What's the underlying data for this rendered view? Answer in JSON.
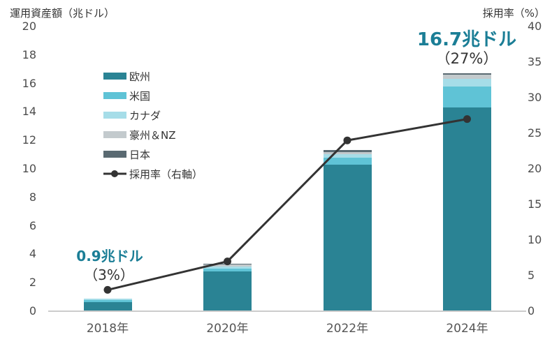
{
  "chart_data": {
    "type": "bar",
    "subtype": "stacked-bar-with-line",
    "categories": [
      "2018年",
      "2020年",
      "2022年",
      "2024年"
    ],
    "series": [
      {
        "name": "欧州",
        "color": "#2a8394",
        "values": [
          0.65,
          2.8,
          10.3,
          14.3
        ]
      },
      {
        "name": "米国",
        "color": "#5fc3d6",
        "values": [
          0.15,
          0.2,
          0.5,
          1.5
        ]
      },
      {
        "name": "カナダ",
        "color": "#a6dde8",
        "values": [
          0.1,
          0.15,
          0.25,
          0.5
        ]
      },
      {
        "name": "豪州＆NZ",
        "color": "#c3cacd",
        "values": [
          0.0,
          0.15,
          0.15,
          0.3
        ]
      },
      {
        "name": "日本",
        "color": "#5a6a72",
        "values": [
          0.0,
          0.05,
          0.1,
          0.1
        ]
      }
    ],
    "totals": [
      0.9,
      3.35,
      11.3,
      16.7
    ],
    "line_series": {
      "name": "採用率（右軸）",
      "color": "#333333",
      "values": [
        3,
        7,
        24,
        27
      ]
    },
    "left_axis": {
      "title": "運用資産額（兆ドル）",
      "min": 0,
      "max": 20,
      "step": 2
    },
    "right_axis": {
      "title": "採用率（%）",
      "min": 0,
      "max": 40,
      "step": 5
    },
    "grid": "off",
    "legend_position": "upper-left-inside"
  },
  "annotations": {
    "y2018": {
      "value": "0.9兆ドル",
      "pct": "（3%）"
    },
    "y2024": {
      "value": "16.7兆ドル",
      "pct": "（27%）"
    }
  },
  "colors": {
    "annotation_accent": "#1b7e96",
    "axis_line": "#cccccc",
    "tick_text": "#4d4d4d",
    "label_text": "#555555"
  }
}
